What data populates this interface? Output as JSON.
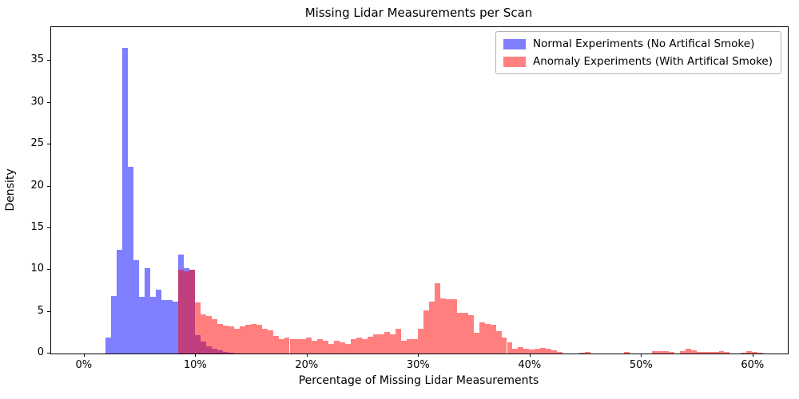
{
  "figure": {
    "title": "Missing Lidar Measurements per Scan",
    "xlabel": "Percentage of Missing Lidar Measurements",
    "ylabel": "Density"
  },
  "chart_data": {
    "type": "bar",
    "subtype": "overlaid-histogram",
    "title": "Missing Lidar Measurements per Scan",
    "xlabel": "Percentage of Missing Lidar Measurements",
    "ylabel": "Density",
    "xlim": [
      -3.0,
      63.1
    ],
    "ylim": [
      0,
      39.05
    ],
    "x_ticks": [
      0,
      10,
      20,
      30,
      40,
      50,
      60
    ],
    "x_tick_labels": [
      "0%",
      "10%",
      "20%",
      "30%",
      "40%",
      "50%",
      "60%"
    ],
    "y_ticks": [
      0,
      5,
      10,
      15,
      20,
      25,
      30,
      35
    ],
    "grid": false,
    "legend_position": "upper right",
    "x_unit": "percent",
    "y_unit": "density",
    "series": [
      {
        "name": "Normal Experiments (No Artifical Smoke)",
        "color": "rgba(0,0,255,0.5)",
        "legend_color_hex": "#8080ff",
        "bin_start": 1.9,
        "bin_width": 0.5,
        "densities": [
          1.9,
          6.9,
          12.4,
          36.6,
          22.3,
          11.2,
          6.8,
          10.2,
          6.8,
          7.6,
          6.4,
          6.4,
          6.2,
          11.8,
          10.25,
          10.05,
          2.2,
          1.4,
          0.9,
          0.6,
          0.35,
          0.2,
          0.1
        ]
      },
      {
        "name": "Anomaly Experiments (With Artifical Smoke)",
        "color": "rgba(255,0,0,0.5)",
        "legend_color_hex": "#ff8080",
        "bin_start": 8.4,
        "bin_width": 0.5,
        "densities": [
          10.0,
          9.8,
          10.05,
          6.1,
          4.7,
          4.5,
          4.15,
          3.5,
          3.3,
          3.2,
          3.0,
          3.25,
          3.45,
          3.5,
          3.45,
          3.0,
          2.8,
          2.1,
          1.7,
          1.9,
          1.7,
          1.75,
          1.7,
          1.9,
          1.5,
          1.7,
          1.5,
          1.1,
          1.5,
          1.3,
          1.1,
          1.7,
          1.9,
          1.75,
          2.05,
          2.25,
          2.25,
          2.6,
          2.25,
          3.0,
          1.5,
          1.75,
          1.75,
          3.0,
          5.2,
          6.2,
          8.4,
          6.6,
          6.5,
          6.5,
          4.9,
          4.9,
          4.55,
          2.5,
          3.75,
          3.55,
          3.4,
          2.65,
          1.9,
          1.3,
          0.6,
          0.8,
          0.6,
          0.5,
          0.6,
          0.7,
          0.55,
          0.4,
          0.2,
          0,
          0,
          0,
          0.1,
          0.2,
          0,
          0,
          0,
          0,
          0,
          0,
          0.15,
          0,
          0,
          0,
          0,
          0.25,
          0.3,
          0.28,
          0.2,
          0,
          0.3,
          0.6,
          0.35,
          0.2,
          0.2,
          0.2,
          0.2,
          0.3,
          0.15,
          0,
          0,
          0.1,
          0.25,
          0.2,
          0.1
        ]
      }
    ]
  }
}
